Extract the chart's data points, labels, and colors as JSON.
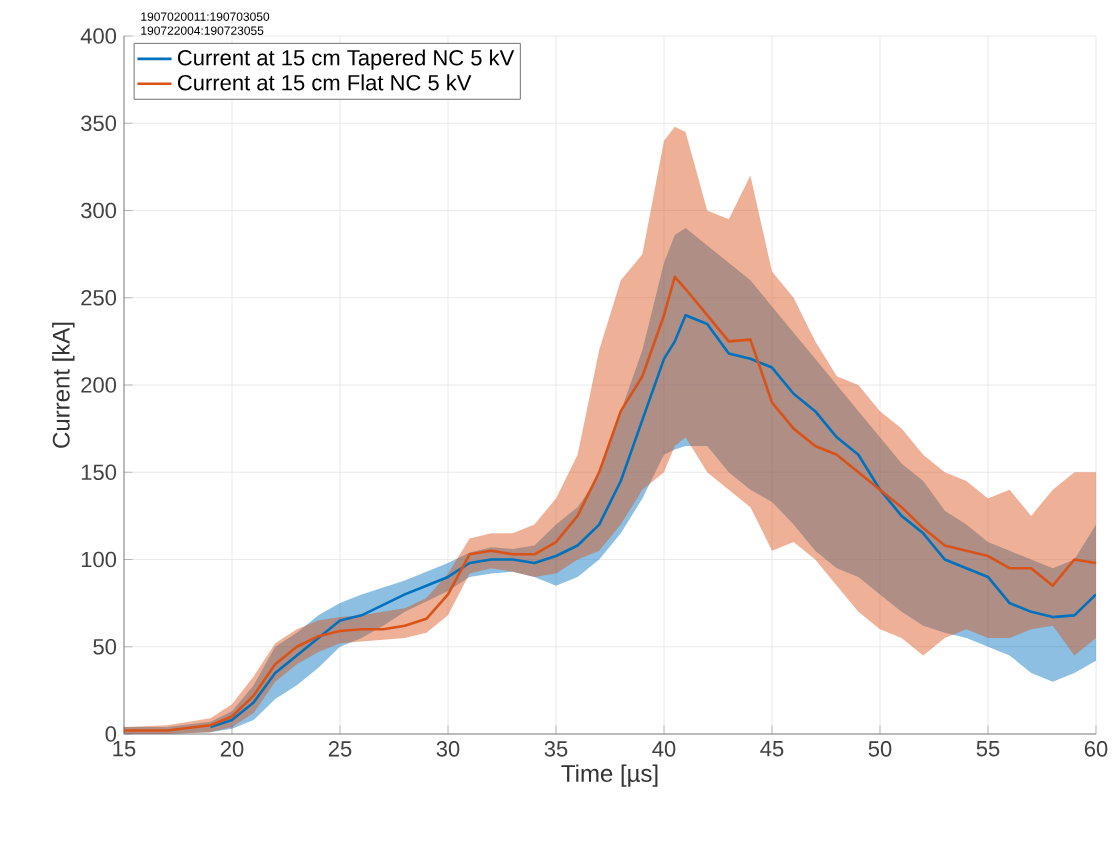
{
  "chart_data": {
    "type": "line",
    "xlabel": "Time [µs]",
    "ylabel": "Current [kA]",
    "annotations": [
      "1907020011:190703050",
      "190722004:190723055"
    ],
    "x": [
      15,
      17,
      19,
      20,
      21,
      22,
      23,
      24,
      25,
      26,
      27,
      28,
      29,
      30,
      31,
      32,
      33,
      34,
      35,
      36,
      37,
      38,
      39,
      40,
      40.5,
      41,
      42,
      43,
      44,
      45,
      46,
      47,
      48,
      49,
      50,
      51,
      52,
      53,
      54,
      55,
      56,
      57,
      58,
      59,
      60
    ],
    "series": [
      {
        "name": "Current at 15 cm Tapered NC 5 kV",
        "color": "#0072bd",
        "values": [
          null,
          null,
          4,
          8,
          18,
          35,
          45,
          55,
          65,
          68,
          74,
          80,
          85,
          90,
          98,
          100,
          100,
          98,
          102,
          108,
          120,
          145,
          180,
          215,
          225,
          240,
          235,
          218,
          215,
          210,
          195,
          185,
          170,
          160,
          140,
          125,
          115,
          100,
          95,
          90,
          75,
          70,
          67,
          68,
          80
        ],
        "lower": [
          0,
          0,
          1,
          3,
          8,
          20,
          28,
          38,
          50,
          55,
          62,
          70,
          76,
          82,
          90,
          92,
          93,
          90,
          85,
          90,
          100,
          115,
          135,
          160,
          163,
          165,
          165,
          150,
          140,
          133,
          120,
          105,
          95,
          90,
          80,
          70,
          62,
          58,
          55,
          50,
          45,
          35,
          30,
          35,
          42
        ],
        "upper": [
          4,
          4,
          7,
          13,
          28,
          50,
          58,
          68,
          75,
          80,
          84,
          88,
          93,
          98,
          104,
          107,
          106,
          108,
          120,
          130,
          148,
          185,
          220,
          270,
          286,
          290,
          280,
          270,
          260,
          245,
          230,
          215,
          200,
          185,
          170,
          155,
          145,
          128,
          120,
          110,
          105,
          100,
          95,
          100,
          120
        ]
      },
      {
        "name": "Current at 15 cm Flat NC 5 kV",
        "color": "#d95319",
        "values": [
          2,
          2,
          5,
          10,
          22,
          40,
          50,
          56,
          59,
          60,
          60,
          62,
          66,
          80,
          103,
          105,
          103,
          103,
          110,
          125,
          150,
          185,
          205,
          240,
          262,
          255,
          240,
          225,
          226,
          190,
          175,
          165,
          160,
          150,
          140,
          130,
          118,
          108,
          105,
          102,
          95,
          95,
          85,
          100,
          98
        ],
        "lower": [
          0,
          0,
          1,
          4,
          12,
          30,
          40,
          47,
          52,
          53,
          54,
          55,
          58,
          68,
          92,
          95,
          93,
          90,
          92,
          100,
          105,
          120,
          140,
          150,
          165,
          170,
          150,
          140,
          130,
          105,
          110,
          100,
          85,
          70,
          60,
          55,
          45,
          55,
          60,
          55,
          55,
          60,
          62,
          45,
          55
        ],
        "upper": [
          4,
          5,
          9,
          17,
          33,
          52,
          60,
          65,
          67,
          68,
          70,
          72,
          78,
          92,
          112,
          115,
          115,
          120,
          135,
          160,
          220,
          260,
          275,
          340,
          348,
          345,
          300,
          295,
          320,
          265,
          250,
          225,
          205,
          200,
          185,
          175,
          160,
          150,
          145,
          135,
          140,
          125,
          140,
          150,
          150
        ]
      }
    ],
    "xlim": [
      15,
      60
    ],
    "ylim": [
      0,
      400
    ],
    "xticks": [
      15,
      20,
      25,
      30,
      35,
      40,
      45,
      50,
      55,
      60
    ],
    "yticks": [
      0,
      50,
      100,
      150,
      200,
      250,
      300,
      350,
      400
    ],
    "grid": true,
    "legend": "top left",
    "marker": "none",
    "line_style": "solid"
  }
}
